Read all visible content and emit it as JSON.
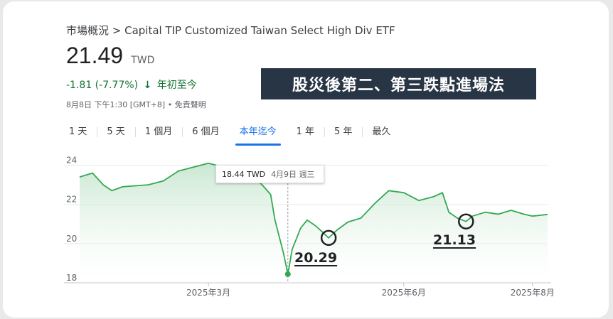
{
  "header": {
    "breadcrumb": "市場概況 > Capital TIP Customized Taiwan Select High Div ETF",
    "price": "21.49",
    "currency": "TWD",
    "change": "-1.81 (-7.77%)",
    "change_period": "年初至今",
    "timestamp": "8月8日 下午1:30 [GMT+8] • 免責聲明"
  },
  "banner": {
    "text": "股災後第二、第三跌點進場法"
  },
  "tabs": [
    {
      "label": "1 天"
    },
    {
      "label": "5 天"
    },
    {
      "label": "1 個月"
    },
    {
      "label": "6 個月"
    },
    {
      "label": "本年迄今",
      "active": true
    },
    {
      "label": "1 年"
    },
    {
      "label": "5 年"
    },
    {
      "label": "最久"
    }
  ],
  "tooltip": {
    "value": "18.44 TWD",
    "date": "4月9日 週三"
  },
  "annotations": [
    {
      "label": "20.29"
    },
    {
      "label": "21.13"
    }
  ],
  "colors": {
    "line": "#34a853",
    "fill_top": "#c7e6cf",
    "text_green": "#137333",
    "tab_active": "#1a73e8"
  },
  "chart_data": {
    "type": "area",
    "x_labels": [
      "2025年3月",
      "2025年6月",
      "2025年8月"
    ],
    "y_ticks": [
      18,
      20,
      22,
      24
    ],
    "ylim": [
      18,
      24.6
    ],
    "xlim": [
      "2025-01-02",
      "2025-08-08"
    ],
    "series": [
      {
        "points": [
          [
            "2025-01-02",
            23.4
          ],
          [
            "2025-01-08",
            23.6
          ],
          [
            "2025-01-13",
            23.0
          ],
          [
            "2025-01-17",
            22.7
          ],
          [
            "2025-01-22",
            22.9
          ],
          [
            "2025-02-03",
            23.0
          ],
          [
            "2025-02-10",
            23.2
          ],
          [
            "2025-02-17",
            23.7
          ],
          [
            "2025-02-24",
            23.9
          ],
          [
            "2025-03-03",
            24.1
          ],
          [
            "2025-03-10",
            23.9
          ],
          [
            "2025-03-17",
            23.7
          ],
          [
            "2025-03-24",
            23.4
          ],
          [
            "2025-03-28",
            23.0
          ],
          [
            "2025-04-01",
            22.5
          ],
          [
            "2025-04-03",
            21.2
          ],
          [
            "2025-04-07",
            19.5
          ],
          [
            "2025-04-09",
            18.44
          ],
          [
            "2025-04-11",
            19.7
          ],
          [
            "2025-04-15",
            20.8
          ],
          [
            "2025-04-18",
            21.2
          ],
          [
            "2025-04-22",
            20.9
          ],
          [
            "2025-04-25",
            20.6
          ],
          [
            "2025-04-28",
            20.29
          ],
          [
            "2025-05-02",
            20.7
          ],
          [
            "2025-05-07",
            21.1
          ],
          [
            "2025-05-13",
            21.3
          ],
          [
            "2025-05-20",
            22.1
          ],
          [
            "2025-05-26",
            22.7
          ],
          [
            "2025-06-02",
            22.6
          ],
          [
            "2025-06-09",
            22.2
          ],
          [
            "2025-06-16",
            22.4
          ],
          [
            "2025-06-20",
            22.6
          ],
          [
            "2025-06-23",
            21.6
          ],
          [
            "2025-06-27",
            21.3
          ],
          [
            "2025-07-01",
            21.13
          ],
          [
            "2025-07-04",
            21.4
          ],
          [
            "2025-07-10",
            21.6
          ],
          [
            "2025-07-16",
            21.5
          ],
          [
            "2025-07-22",
            21.7
          ],
          [
            "2025-07-28",
            21.5
          ],
          [
            "2025-08-01",
            21.4
          ],
          [
            "2025-08-08",
            21.49
          ]
        ]
      }
    ]
  }
}
